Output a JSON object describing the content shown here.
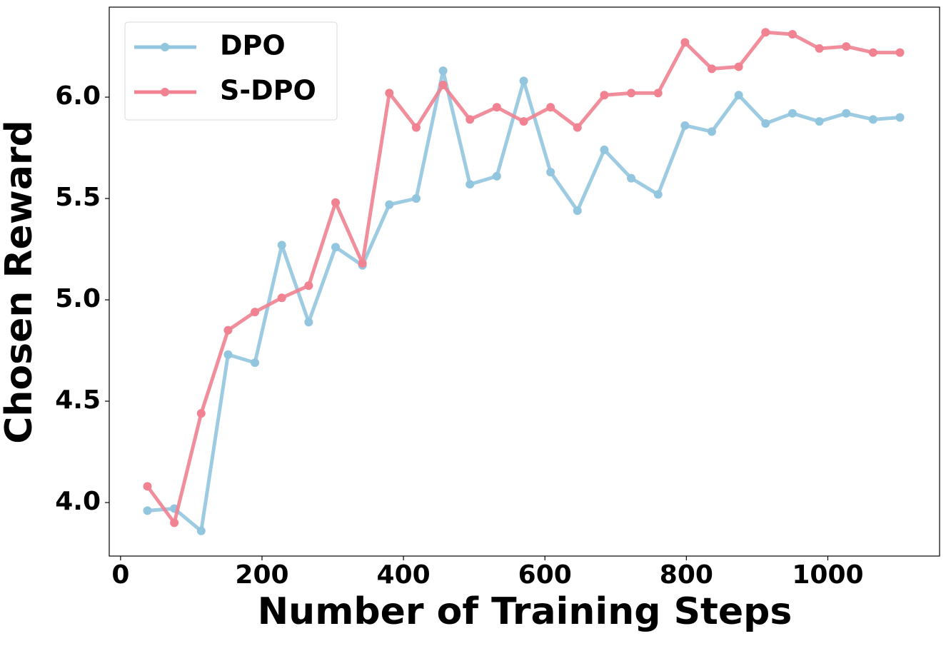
{
  "chart_data": {
    "type": "line",
    "x_label": "Number of Training Steps",
    "y_label": "Chosen Reward",
    "x": [
      38,
      76,
      114,
      152,
      190,
      228,
      266,
      304,
      342,
      380,
      418,
      456,
      494,
      532,
      570,
      608,
      646,
      684,
      722,
      760,
      798,
      836,
      874,
      912,
      950,
      988,
      1026,
      1064,
      1102
    ],
    "series": [
      {
        "name": "DPO",
        "color": "#92c5de",
        "values": [
          3.96,
          3.97,
          3.86,
          4.73,
          4.69,
          5.27,
          4.89,
          5.26,
          5.17,
          5.47,
          5.5,
          6.13,
          5.57,
          5.61,
          6.08,
          5.63,
          5.44,
          5.74,
          5.6,
          5.52,
          5.86,
          5.83,
          6.01,
          5.87,
          5.92,
          5.88,
          5.92,
          5.89,
          5.9
        ]
      },
      {
        "name": "S-DPO",
        "color": "#f08291",
        "values": [
          4.08,
          3.9,
          4.44,
          4.85,
          4.94,
          5.01,
          5.07,
          5.48,
          5.18,
          6.02,
          5.85,
          6.06,
          5.89,
          5.95,
          5.88,
          5.95,
          5.85,
          6.01,
          6.02,
          6.02,
          6.27,
          6.14,
          6.15,
          6.32,
          6.31,
          6.24,
          6.25,
          6.22,
          6.22
        ]
      }
    ],
    "xlim": [
      -16,
      1158
    ],
    "ylim": [
      3.736,
      6.444
    ],
    "xticks": [
      0,
      200,
      400,
      600,
      800,
      1000
    ],
    "yticks": [
      {
        "value": 4,
        "label": "4.0"
      },
      {
        "value": 4.5,
        "label": "4.5"
      },
      {
        "value": 5,
        "label": "5.0"
      },
      {
        "value": 5.5,
        "label": "5.5"
      },
      {
        "value": 6,
        "label": "6.0"
      }
    ],
    "legend": "upper left",
    "grid": false
  }
}
